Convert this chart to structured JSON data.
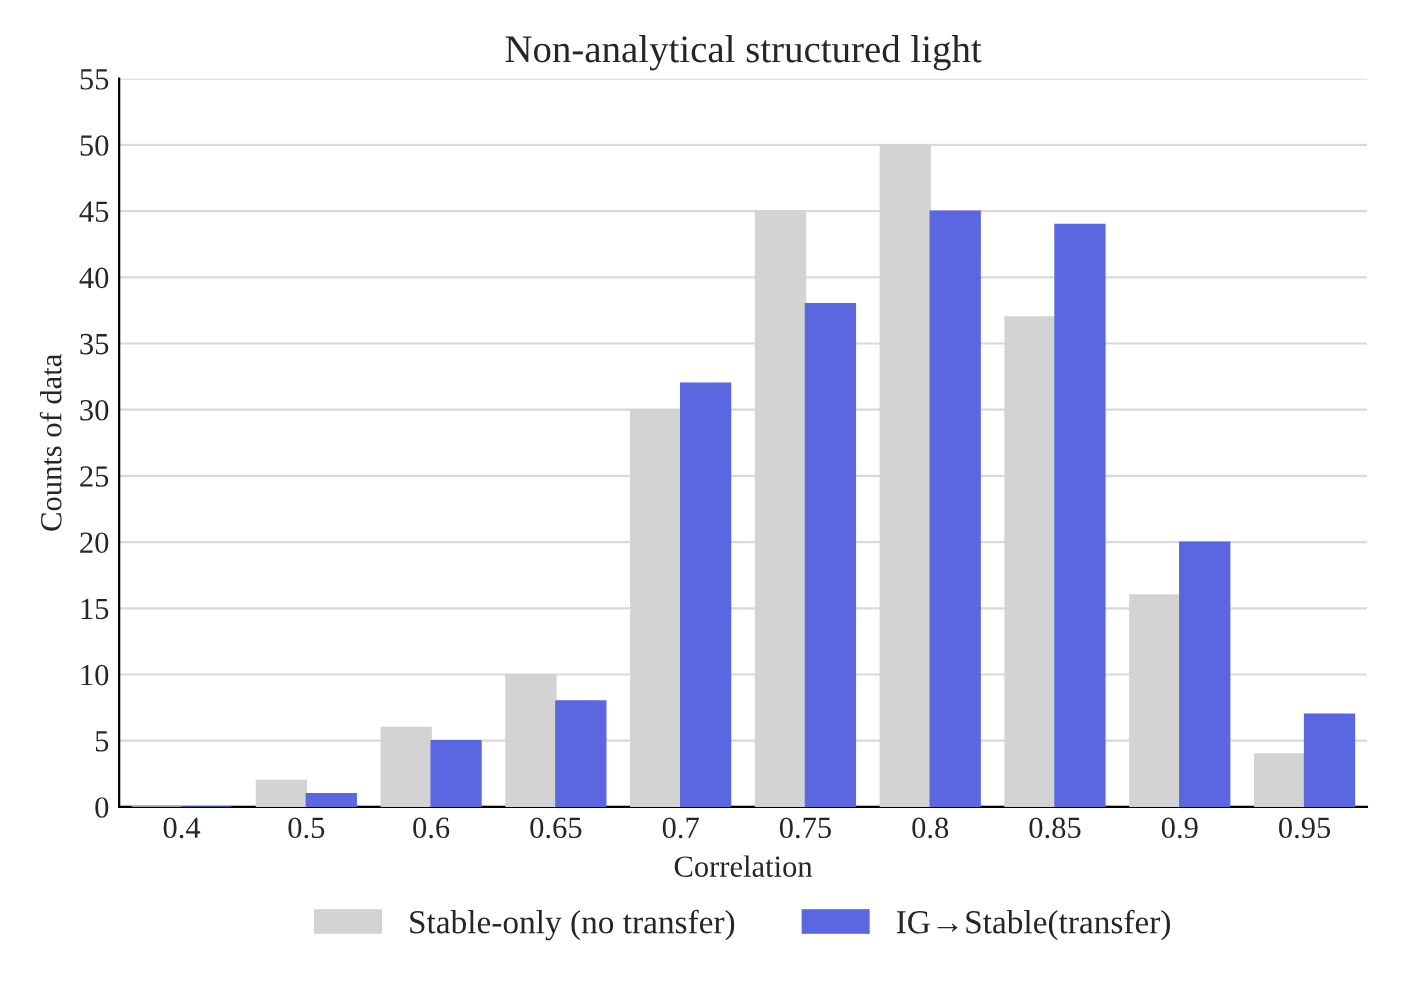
{
  "chart_data": {
    "type": "bar",
    "title": "Non-analytical structured light",
    "xlabel": "Correlation",
    "ylabel": "Counts of data",
    "categories": [
      "0.4",
      "0.5",
      "0.6",
      "0.65",
      "0.7",
      "0.75",
      "0.8",
      "0.85",
      "0.9",
      "0.95"
    ],
    "series": [
      {
        "name": "Stable-only (no transfer)",
        "color": "#d3d3d3",
        "values": [
          0,
          2,
          6,
          10,
          30,
          45,
          50,
          37,
          16,
          4
        ]
      },
      {
        "name": "IG→Stable(transfer)",
        "color": "#5b67e0",
        "values": [
          0,
          1,
          5,
          8,
          32,
          38,
          45,
          44,
          20,
          7
        ]
      }
    ],
    "ylim": [
      0,
      55
    ],
    "yticks": [
      0,
      5,
      10,
      15,
      20,
      25,
      30,
      35,
      40,
      45,
      50,
      55
    ],
    "grid": "y",
    "legend": "bottom"
  }
}
